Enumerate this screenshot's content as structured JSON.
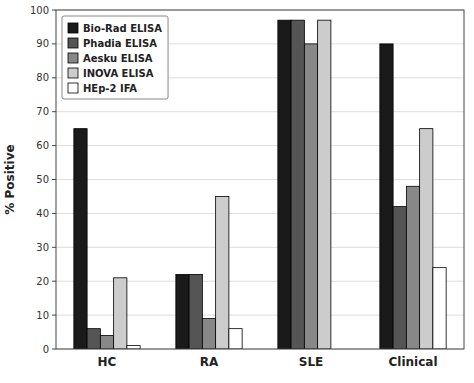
{
  "chart_data": {
    "type": "bar",
    "categories": [
      "HC",
      "RA",
      "SLE",
      "Clinical"
    ],
    "series": [
      {
        "name": "Bio-Rad ELISA",
        "color": "#1a1a1a",
        "values": [
          65,
          22,
          97,
          90
        ]
      },
      {
        "name": "Phadia ELISA",
        "color": "#555555",
        "values": [
          6,
          22,
          97,
          42
        ]
      },
      {
        "name": "Aesku ELISA",
        "color": "#888888",
        "values": [
          4,
          9,
          90,
          48
        ]
      },
      {
        "name": "INOVA ELISA",
        "color": "#cccccc",
        "values": [
          21,
          45,
          97,
          65
        ]
      },
      {
        "name": "HEp-2 IFA",
        "color": "#ffffff",
        "values": [
          1,
          6,
          0,
          24
        ]
      }
    ],
    "ylabel": "% Positive",
    "ylim": [
      0,
      100
    ],
    "yticks": [
      0,
      10,
      20,
      30,
      40,
      50,
      60,
      70,
      80,
      90,
      100
    ],
    "grid": true,
    "legend": "upper left"
  }
}
